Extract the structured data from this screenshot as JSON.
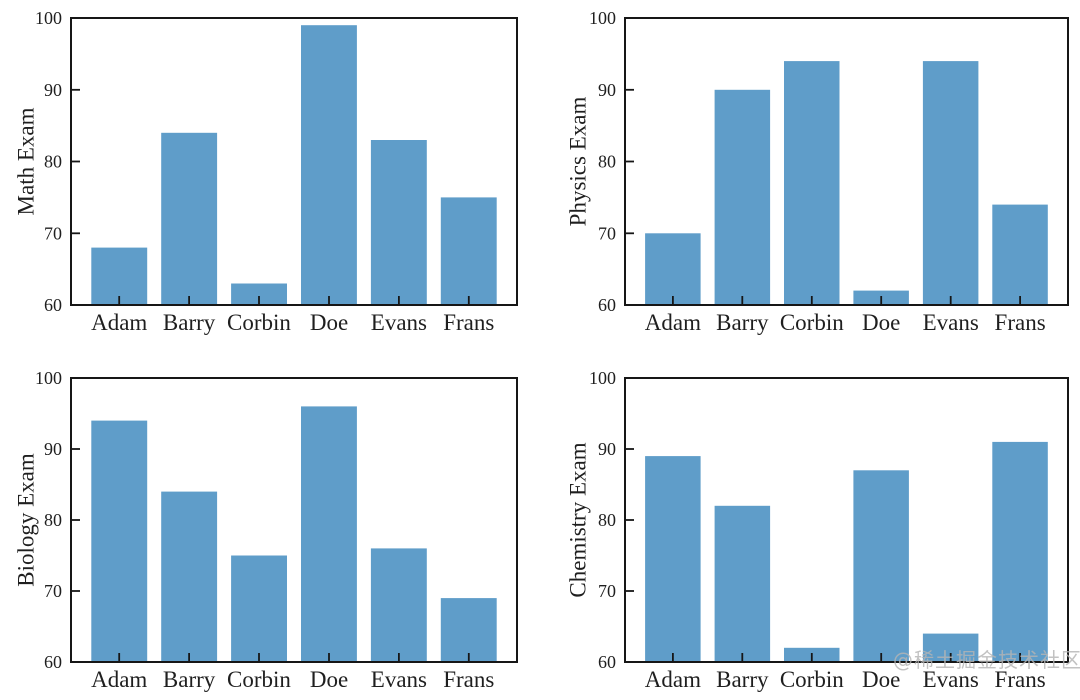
{
  "figure": {
    "background": "#ffffff",
    "bar_color": "#5F9DC9",
    "axis_color": "#161616",
    "text_color": "#1f1f1f",
    "watermark": "@稀土掘金技术社区"
  },
  "chart_data": [
    {
      "type": "bar",
      "title": "",
      "ylabel": "Math Exam",
      "xlabel": "",
      "categories": [
        "Adam",
        "Barry",
        "Corbin",
        "Doe",
        "Evans",
        "Frans"
      ],
      "values": [
        68,
        84,
        63,
        99,
        83,
        75
      ],
      "ylim": [
        60,
        100
      ],
      "yticks": [
        60,
        70,
        80,
        90,
        100
      ],
      "grid": false,
      "legend": null
    },
    {
      "type": "bar",
      "title": "",
      "ylabel": "Physics Exam",
      "xlabel": "",
      "categories": [
        "Adam",
        "Barry",
        "Corbin",
        "Doe",
        "Evans",
        "Frans"
      ],
      "values": [
        70,
        90,
        94,
        62,
        94,
        74
      ],
      "ylim": [
        60,
        100
      ],
      "yticks": [
        60,
        70,
        80,
        90,
        100
      ],
      "grid": false,
      "legend": null
    },
    {
      "type": "bar",
      "title": "",
      "ylabel": "Biology Exam",
      "xlabel": "",
      "categories": [
        "Adam",
        "Barry",
        "Corbin",
        "Doe",
        "Evans",
        "Frans"
      ],
      "values": [
        94,
        84,
        75,
        96,
        76,
        69
      ],
      "ylim": [
        60,
        100
      ],
      "yticks": [
        60,
        70,
        80,
        90,
        100
      ],
      "grid": false,
      "legend": null
    },
    {
      "type": "bar",
      "title": "",
      "ylabel": "Chemistry Exam",
      "xlabel": "",
      "categories": [
        "Adam",
        "Barry",
        "Corbin",
        "Doe",
        "Evans",
        "Frans"
      ],
      "values": [
        89,
        82,
        62,
        87,
        64,
        91
      ],
      "ylim": [
        60,
        100
      ],
      "yticks": [
        60,
        70,
        80,
        90,
        100
      ],
      "grid": false,
      "legend": null
    }
  ]
}
